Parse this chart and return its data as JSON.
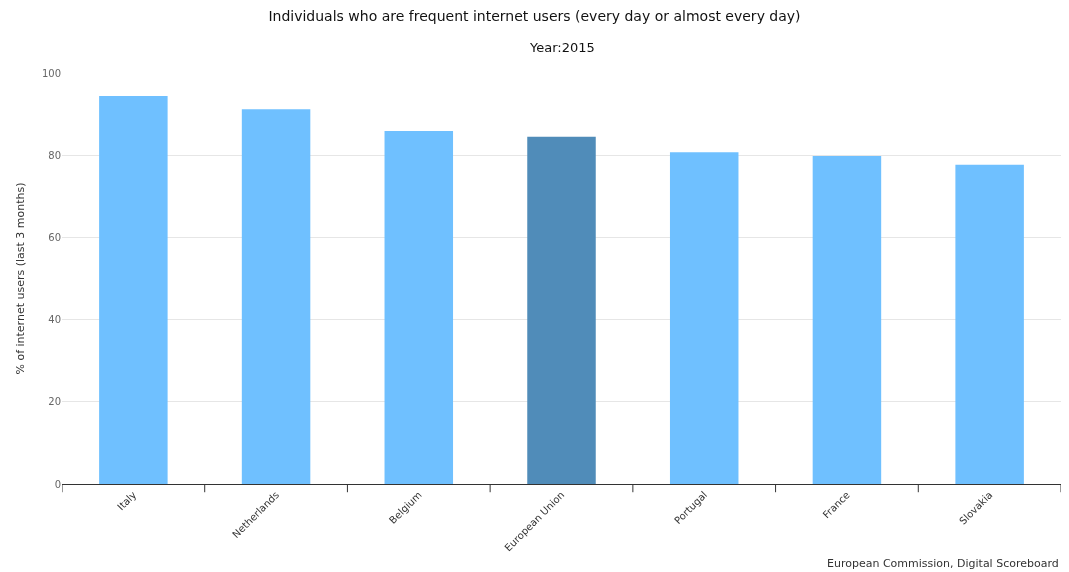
{
  "chart_data": {
    "type": "bar",
    "title": "Individuals who are frequent internet users (every day or almost every day)",
    "subtitle": "Year:2015",
    "ylabel": "% of internet users (last 3 months)",
    "categories": [
      "Italy",
      "Netherlands",
      "Belgium",
      "European Union",
      "Portugal",
      "France",
      "Slovakia"
    ],
    "values": [
      94.4,
      91.2,
      85.9,
      84.5,
      80.7,
      79.8,
      77.7
    ],
    "colors": [
      "#6fc0ff",
      "#6fc0ff",
      "#6fc0ff",
      "#508cb9",
      "#6fc0ff",
      "#6fc0ff",
      "#6fc0ff"
    ],
    "ylim": [
      0,
      100
    ],
    "yticks": [
      0,
      20,
      40,
      60,
      80,
      100
    ],
    "grid": "y",
    "annotations": [
      "European Commission, Digital Scoreboard"
    ]
  }
}
